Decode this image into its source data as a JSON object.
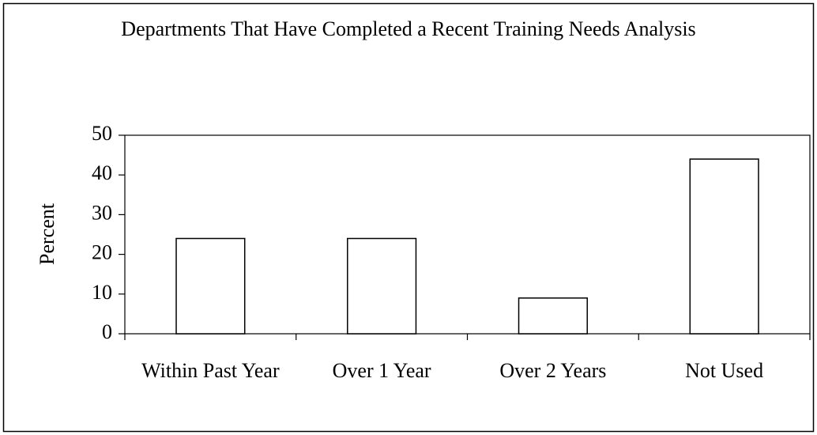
{
  "chart_data": {
    "type": "bar",
    "title": "Departments That Have Completed a Recent Training Needs Analysis",
    "y_label": "Percent",
    "categories": [
      "Within Past Year",
      "Over 1 Year",
      "Over 2 Years",
      "Not Used"
    ],
    "values": [
      24,
      24,
      9,
      44
    ],
    "color": "#ffffff",
    "ylim": [
      0,
      50
    ],
    "yticks": [
      0,
      10,
      20,
      30,
      40,
      50
    ],
    "grid": false
  }
}
